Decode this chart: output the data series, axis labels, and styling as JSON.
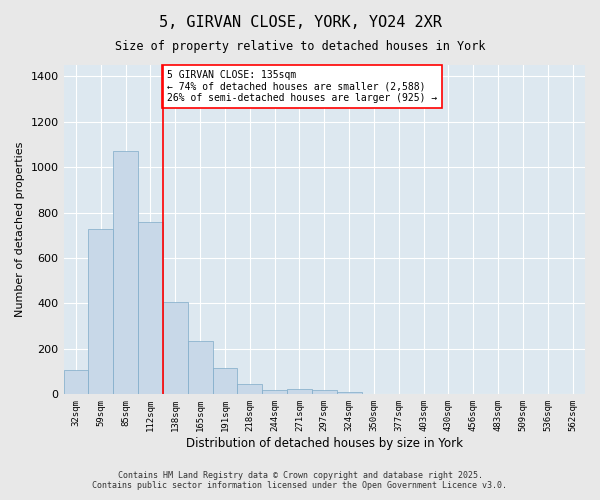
{
  "title": "5, GIRVAN CLOSE, YORK, YO24 2XR",
  "subtitle": "Size of property relative to detached houses in York",
  "xlabel": "Distribution of detached houses by size in York",
  "ylabel": "Number of detached properties",
  "bar_color": "#c8d8e8",
  "bar_edge_color": "#7eaac8",
  "background_color": "#dde8f0",
  "grid_color": "#ffffff",
  "bin_labels": [
    "32sqm",
    "59sqm",
    "85sqm",
    "112sqm",
    "138sqm",
    "165sqm",
    "191sqm",
    "218sqm",
    "244sqm",
    "271sqm",
    "297sqm",
    "324sqm",
    "350sqm",
    "377sqm",
    "403sqm",
    "430sqm",
    "456sqm",
    "483sqm",
    "509sqm",
    "536sqm",
    "562sqm"
  ],
  "bar_heights": [
    107,
    730,
    1070,
    757,
    405,
    237,
    117,
    47,
    20,
    25,
    18,
    10,
    0,
    0,
    0,
    0,
    0,
    0,
    0,
    0,
    0
  ],
  "red_line_x": 4,
  "annotation_title": "5 GIRVAN CLOSE: 135sqm",
  "annotation_line1": "← 74% of detached houses are smaller (2,588)",
  "annotation_line2": "26% of semi-detached houses are larger (925) →",
  "ylim": [
    0,
    1450
  ],
  "yticks": [
    0,
    200,
    400,
    600,
    800,
    1000,
    1200,
    1400
  ],
  "footer1": "Contains HM Land Registry data © Crown copyright and database right 2025.",
  "footer2": "Contains public sector information licensed under the Open Government Licence v3.0.",
  "fig_facecolor": "#e8e8e8"
}
